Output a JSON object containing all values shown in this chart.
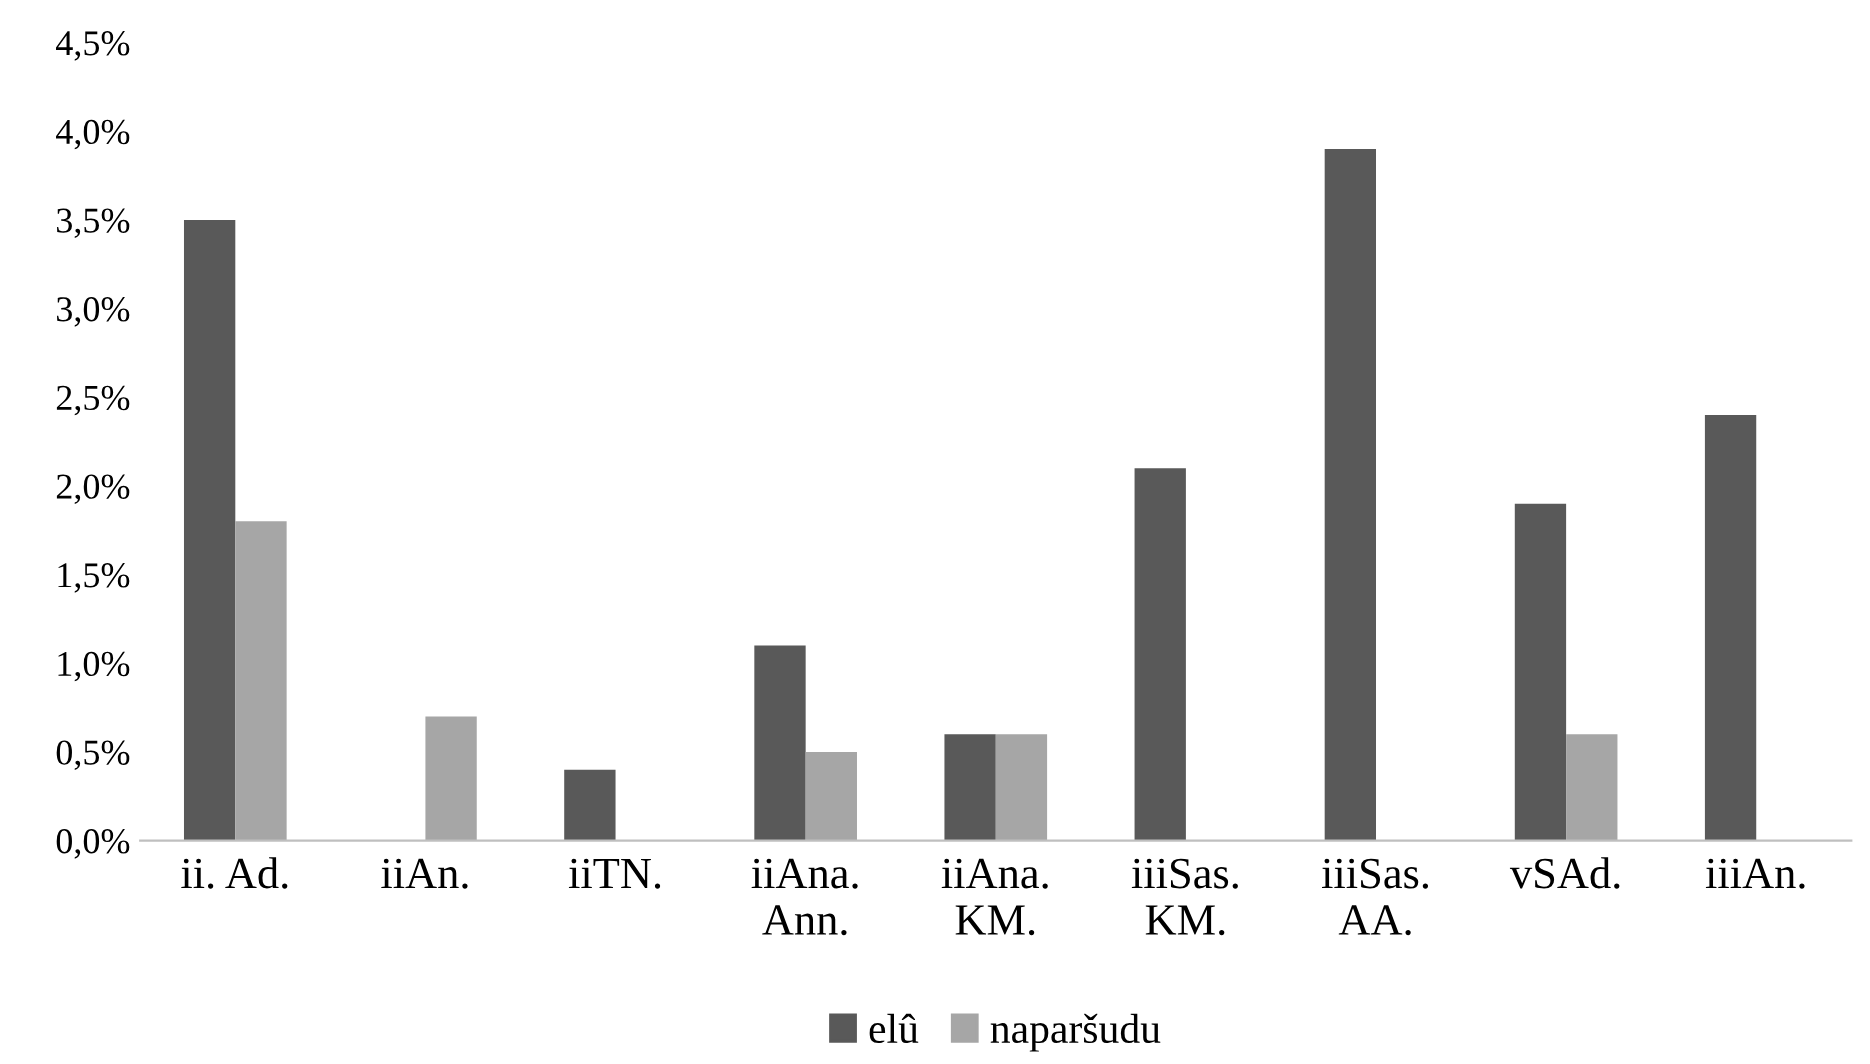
{
  "chart_data": {
    "type": "bar",
    "categories": [
      "ii. Ad.",
      "iiAn.",
      "iiTN.",
      "iiAna.\nAnn.",
      "iiAna.\nKM.",
      "iiiSas.\nKM.",
      "iiiSas.\nAA.",
      "vSAd.",
      "iiiAn."
    ],
    "series": [
      {
        "name": "elû",
        "color": "#595959",
        "values": [
          3.5,
          null,
          0.4,
          1.1,
          0.6,
          2.1,
          3.9,
          1.9,
          2.4
        ]
      },
      {
        "name": "naparšudu",
        "color": "#a6a6a6",
        "values": [
          1.8,
          0.7,
          null,
          0.5,
          0.6,
          null,
          null,
          0.6,
          null
        ]
      }
    ],
    "ylim": [
      0,
      4.5
    ],
    "yticks": [
      {
        "value": 0,
        "label": "0,0%"
      },
      {
        "value": 0.5,
        "label": "0,5%"
      },
      {
        "value": 1,
        "label": "1,0%"
      },
      {
        "value": 1.5,
        "label": "1,5%"
      },
      {
        "value": 2,
        "label": "2,0%"
      },
      {
        "value": 2.5,
        "label": "2,5%"
      },
      {
        "value": 3,
        "label": "3,0%"
      },
      {
        "value": 3.5,
        "label": "3,5%"
      },
      {
        "value": 4,
        "label": "4,0%"
      },
      {
        "value": 4.5,
        "label": "4,5%"
      }
    ],
    "grid": false,
    "legend": "bottom"
  }
}
